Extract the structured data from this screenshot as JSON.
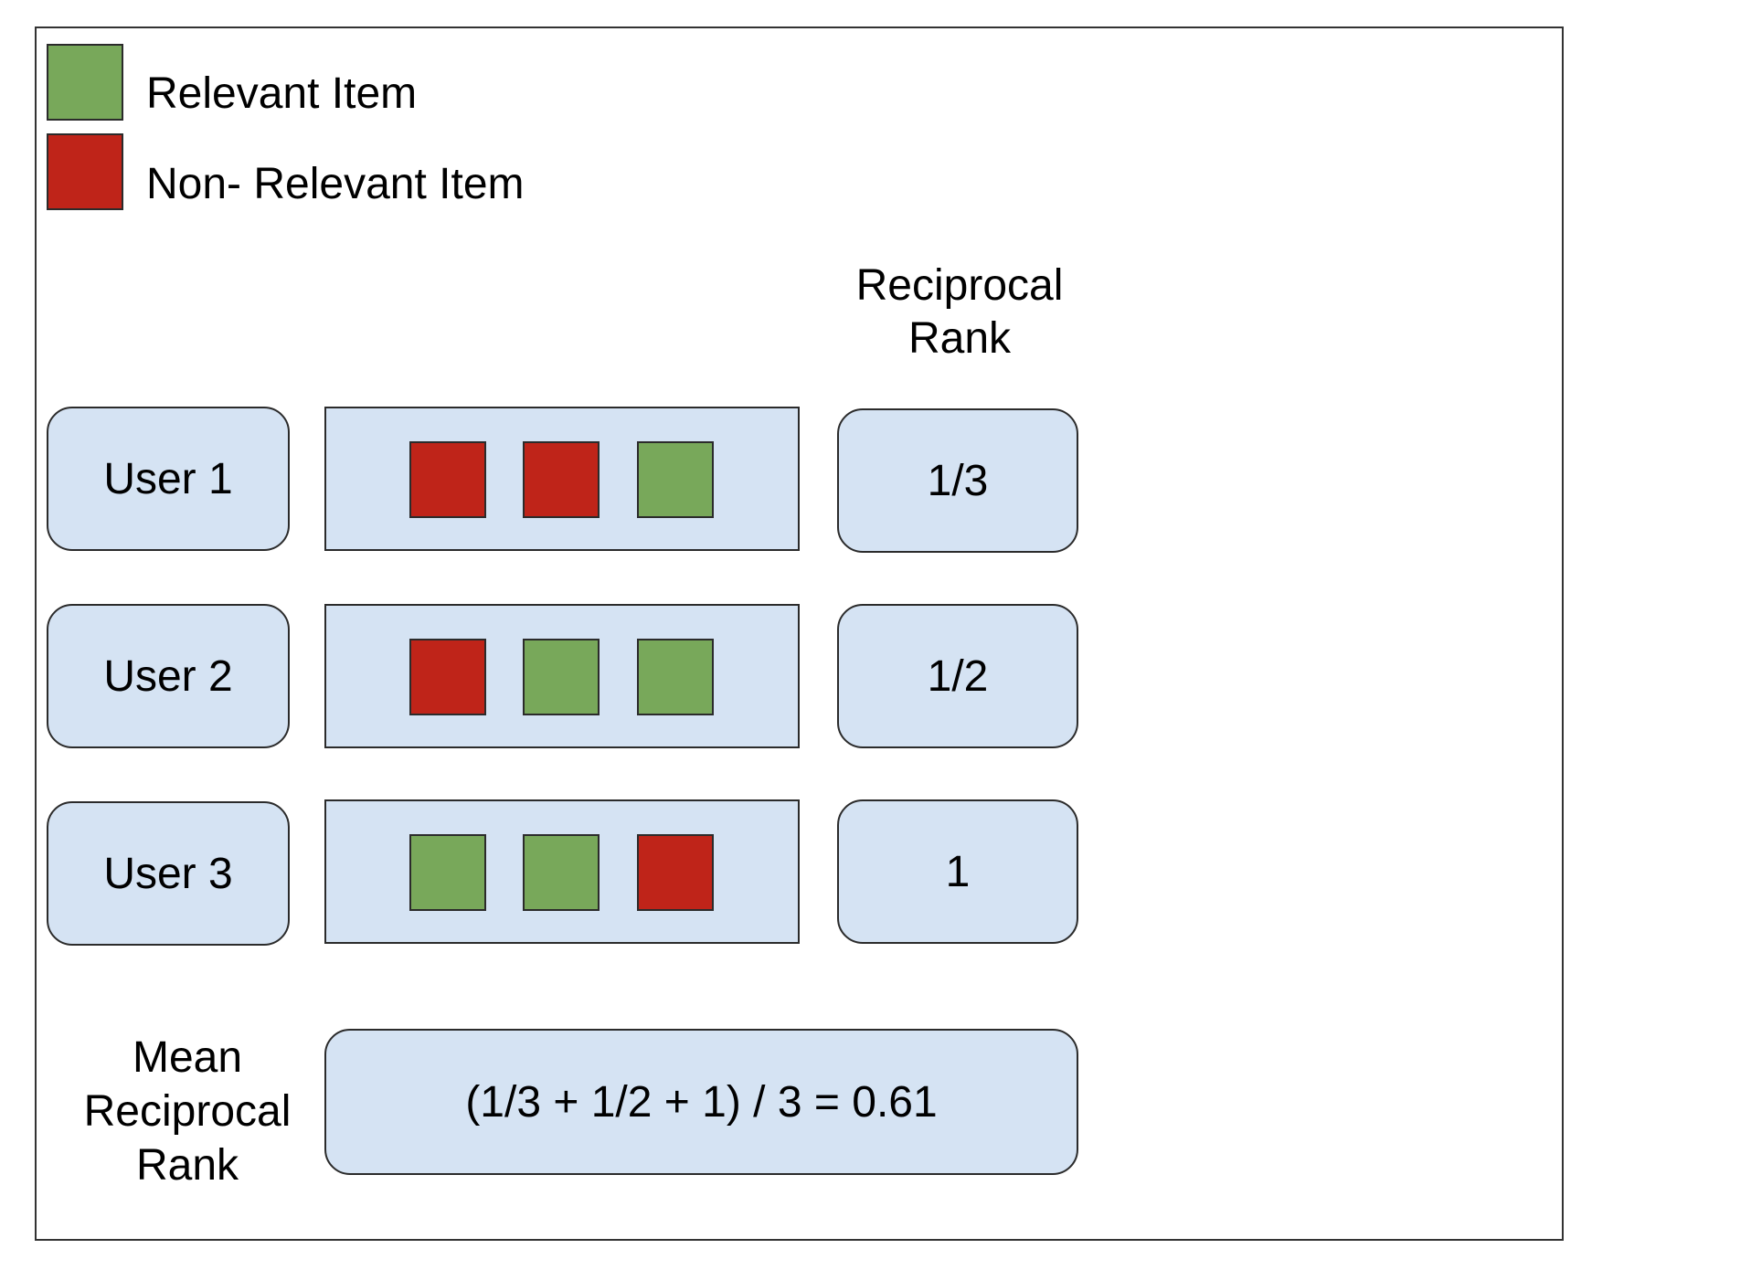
{
  "colors": {
    "relevant": "#78a85a",
    "non_relevant": "#bf2419",
    "box_fill": "#d5e3f3"
  },
  "legend": [
    {
      "label": "Relevant Item",
      "kind": "relevant"
    },
    {
      "label": "Non- Relevant Item",
      "kind": "non_relevant"
    }
  ],
  "header": {
    "reciprocal_rank_line1": "Reciprocal",
    "reciprocal_rank_line2": "Rank"
  },
  "rows": [
    {
      "user": "User 1",
      "items": [
        "non_relevant",
        "non_relevant",
        "relevant"
      ],
      "reciprocal_rank": "1/3"
    },
    {
      "user": "User 2",
      "items": [
        "non_relevant",
        "relevant",
        "relevant"
      ],
      "reciprocal_rank": "1/2"
    },
    {
      "user": "User 3",
      "items": [
        "relevant",
        "relevant",
        "non_relevant"
      ],
      "reciprocal_rank": "1"
    }
  ],
  "mrr": {
    "label_line1": "Mean",
    "label_line2": "Reciprocal",
    "label_line3": "Rank",
    "formula": "(1/3 + 1/2 + 1) / 3 = 0.61"
  }
}
